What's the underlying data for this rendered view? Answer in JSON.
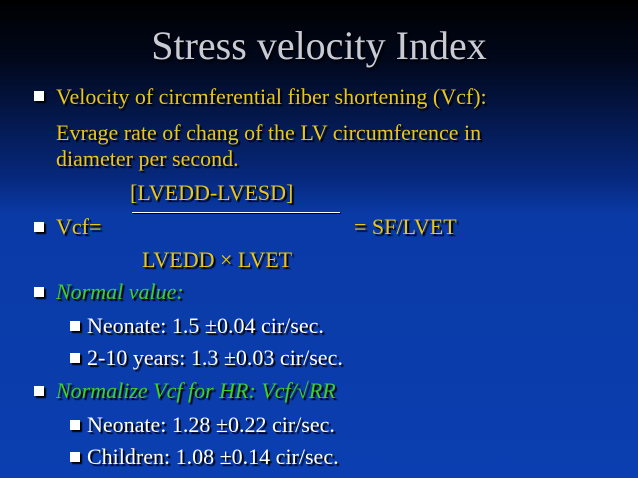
{
  "slide": {
    "title": "Stress velocity Index",
    "bullets": {
      "b1_line1": "Velocity of circmferential fiber shortening (Vcf):",
      "b1_line2": "Evrage rate of chang of the LV circumference in",
      "b1_line3": "diameter per second.",
      "numerator": "[LVEDD-LVESD]",
      "vcf_label": "Vcf=",
      "vcf_right": "= SF/LVET",
      "denominator": "LVEDD × LVET",
      "normal_value": "Normal value:",
      "sub1": "Neonate: 1.5 ±0.04 cir/sec.",
      "sub2": "2-10 years: 1.3 ±0.03 cir/sec.",
      "normalize": "Normalize Vcf for HR: Vcf/√RR",
      "sub3": "Neonate: 1.28 ±0.22 cir/sec.",
      "sub4": "Children: 1.08 ±0.14 cir/sec."
    }
  },
  "colors": {
    "bullet_text": "#e8c61c",
    "italic_text": "#3fcf25",
    "sub_text": "#ffffff",
    "title_text": "#c8cad4"
  }
}
